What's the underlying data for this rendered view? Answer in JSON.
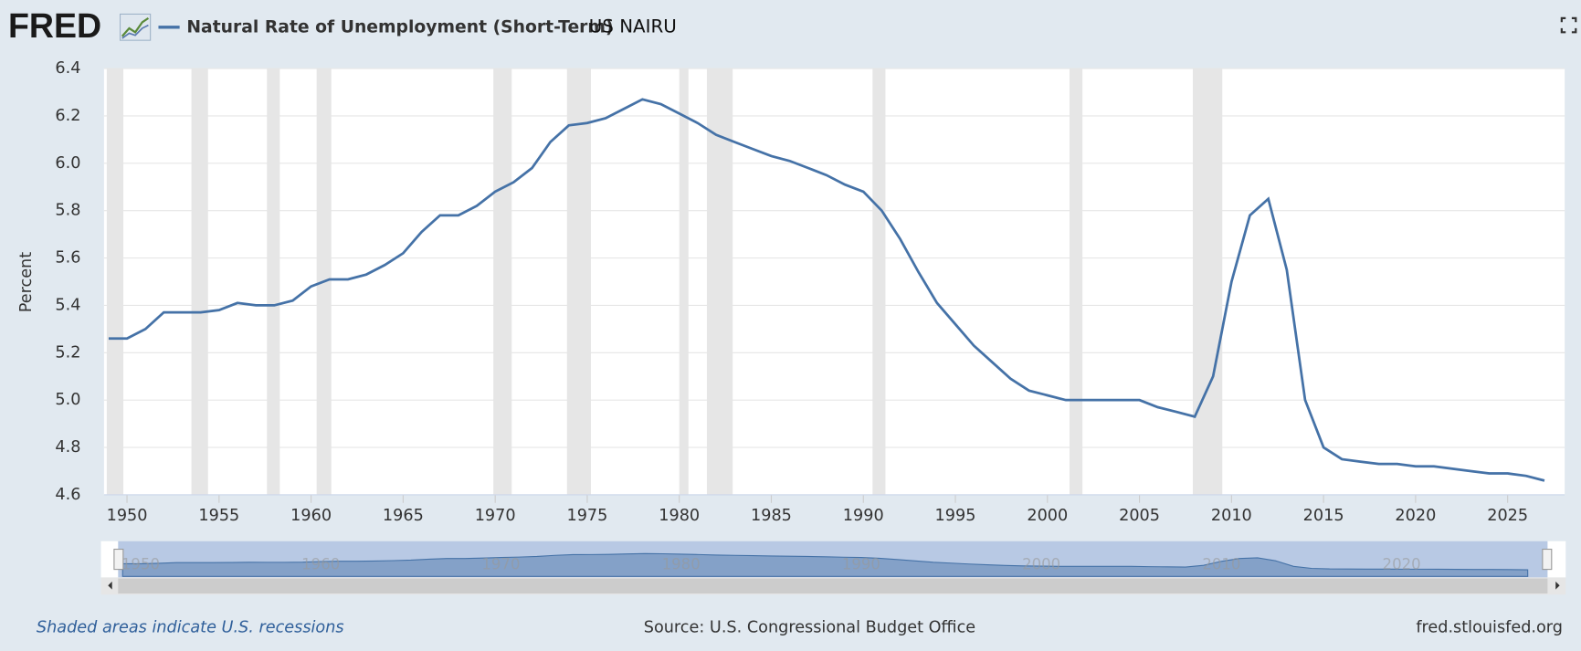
{
  "logo": "FRED",
  "chart_data": {
    "type": "line",
    "annotation": "US NAIRU",
    "y_label": "Percent",
    "note": "Shaded areas indicate U.S. recessions",
    "source": "Source: U.S. Congressional Budget Office",
    "site": "fred.stlouisfed.org",
    "x": [
      1949,
      1950,
      1951,
      1952,
      1953,
      1954,
      1955,
      1956,
      1957,
      1958,
      1959,
      1960,
      1961,
      1962,
      1963,
      1964,
      1965,
      1966,
      1967,
      1968,
      1969,
      1970,
      1971,
      1972,
      1973,
      1974,
      1975,
      1976,
      1977,
      1978,
      1979,
      1980,
      1981,
      1982,
      1983,
      1984,
      1985,
      1986,
      1987,
      1988,
      1989,
      1990,
      1991,
      1992,
      1993,
      1994,
      1995,
      1996,
      1997,
      1998,
      1999,
      2000,
      2001,
      2002,
      2003,
      2004,
      2005,
      2006,
      2007,
      2008,
      2009,
      2010,
      2011,
      2012,
      2013,
      2014,
      2015,
      2016,
      2017,
      2018,
      2019,
      2020,
      2021,
      2022,
      2023,
      2024,
      2025,
      2026,
      2027
    ],
    "series": [
      {
        "name": "Natural Rate of Unemployment (Short-Term)",
        "color": "#4572a7",
        "values": [
          5.26,
          5.26,
          5.3,
          5.37,
          5.37,
          5.37,
          5.38,
          5.41,
          5.4,
          5.4,
          5.42,
          5.48,
          5.51,
          5.51,
          5.53,
          5.57,
          5.62,
          5.71,
          5.78,
          5.78,
          5.82,
          5.88,
          5.92,
          5.98,
          6.09,
          6.16,
          6.17,
          6.19,
          6.23,
          6.27,
          6.25,
          6.21,
          6.17,
          6.12,
          6.09,
          6.06,
          6.03,
          6.01,
          5.98,
          5.95,
          5.91,
          5.88,
          5.8,
          5.68,
          5.54,
          5.41,
          5.32,
          5.23,
          5.16,
          5.09,
          5.04,
          5.02,
          5.0,
          5.0,
          5.0,
          5.0,
          5.0,
          4.97,
          4.95,
          4.93,
          5.1,
          5.5,
          5.78,
          5.85,
          5.55,
          5.0,
          4.8,
          4.75,
          4.74,
          4.73,
          4.73,
          4.72,
          4.72,
          4.71,
          4.7,
          4.69,
          4.69,
          4.68,
          4.66
        ]
      }
    ],
    "recessions": [
      [
        1948.9,
        1949.8
      ],
      [
        1953.5,
        1954.4
      ],
      [
        1957.6,
        1958.3
      ],
      [
        1960.3,
        1961.1
      ],
      [
        1969.9,
        1970.9
      ],
      [
        1973.9,
        1975.2
      ],
      [
        1980.0,
        1980.5
      ],
      [
        1981.5,
        1982.9
      ],
      [
        1990.5,
        1991.2
      ],
      [
        2001.2,
        2001.9
      ],
      [
        2007.9,
        2009.5
      ]
    ],
    "recession_color": "#e6e6e6",
    "xlim": [
      1948.75,
      2028.1
    ],
    "xticks": [
      1950,
      1955,
      1960,
      1965,
      1970,
      1975,
      1980,
      1985,
      1990,
      1995,
      2000,
      2005,
      2010,
      2015,
      2020,
      2025
    ],
    "ylim": [
      4.6,
      6.4
    ],
    "yticks": [
      4.6,
      4.8,
      5.0,
      5.2,
      5.4,
      5.6,
      5.8,
      6.0,
      6.2,
      6.4
    ],
    "yticks_labels": [
      "4.6",
      "4.8",
      "5.0",
      "5.2",
      "5.4",
      "5.6",
      "5.8",
      "6.0",
      "6.2",
      "6.4"
    ],
    "navigator_xticks": [
      1950,
      1960,
      1970,
      1980,
      1990,
      2000,
      2010,
      2020
    ],
    "grid": true
  }
}
